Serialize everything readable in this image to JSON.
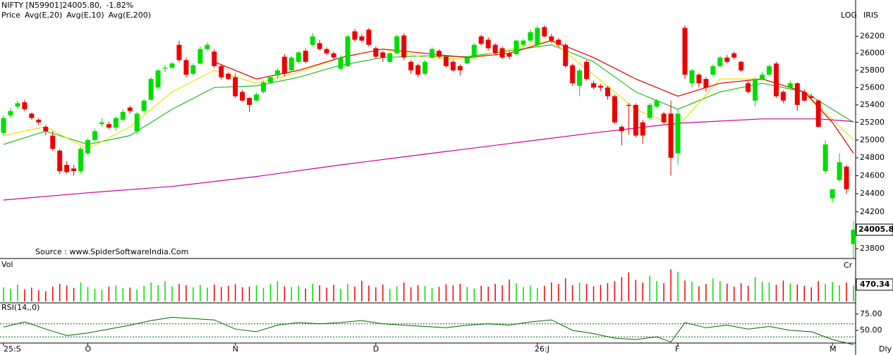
{
  "chart_data": {
    "type": "candlestick",
    "symbol": "NIFTY [N59901]24005.80,",
    "change": "-1.82%",
    "scale_label": "LOG",
    "theme_label": "IRIS",
    "source": "Source : www.SpiderSoftwareIndia.Com",
    "period_label": "Dly",
    "log": true,
    "ylim": [
      23710,
      26550
    ],
    "yticks": [
      23800,
      24000,
      24200,
      24400,
      24600,
      24800,
      25000,
      25200,
      25400,
      25600,
      25800,
      26000,
      26200
    ],
    "categories": [
      "25:S",
      null,
      null,
      null,
      null,
      null,
      null,
      null,
      null,
      null,
      null,
      null,
      "O",
      null,
      null,
      null,
      null,
      null,
      null,
      null,
      null,
      null,
      null,
      null,
      null,
      null,
      null,
      null,
      null,
      null,
      null,
      null,
      null,
      "N",
      null,
      null,
      null,
      null,
      null,
      null,
      null,
      null,
      null,
      null,
      null,
      null,
      null,
      null,
      null,
      null,
      null,
      null,
      null,
      "D",
      null,
      null,
      null,
      null,
      null,
      null,
      null,
      null,
      null,
      null,
      null,
      null,
      null,
      null,
      null,
      null,
      null,
      null,
      null,
      null,
      null,
      null,
      "26:J",
      null,
      null,
      null,
      null,
      null,
      null,
      null,
      null,
      null,
      null,
      null,
      null,
      null,
      null,
      null,
      null,
      null,
      null,
      null,
      "F",
      null,
      null,
      null,
      null,
      null,
      null,
      null,
      null,
      null,
      null,
      null,
      null,
      null,
      null,
      null,
      null,
      null,
      null,
      null,
      null,
      null,
      "M",
      null,
      null,
      null
    ],
    "candles": {
      "name": "Price",
      "up_color": "#00dd00",
      "down_color": "#ee0000",
      "ohlc": [
        [
          25080,
          25280,
          25050,
          25250
        ],
        [
          25280,
          25360,
          25250,
          25330
        ],
        [
          25380,
          25450,
          25350,
          25420
        ],
        [
          25430,
          25460,
          25330,
          25350
        ],
        [
          25300,
          25310,
          25230,
          25250
        ],
        [
          25230,
          25250,
          25170,
          25200
        ],
        [
          25150,
          25170,
          25050,
          25100
        ],
        [
          25050,
          25100,
          24880,
          24900
        ],
        [
          24880,
          24900,
          24620,
          24650
        ],
        [
          24720,
          24760,
          24620,
          24640
        ],
        [
          24680,
          24720,
          24600,
          24650
        ],
        [
          24650,
          24920,
          24620,
          24900
        ],
        [
          24850,
          25020,
          24830,
          25000
        ],
        [
          25000,
          25130,
          24980,
          25100
        ],
        [
          25180,
          25250,
          25150,
          25200
        ],
        [
          25180,
          25210,
          25120,
          25140
        ],
        [
          25140,
          25270,
          25100,
          25250
        ],
        [
          25230,
          25350,
          25200,
          25320
        ],
        [
          25370,
          25390,
          25300,
          25330
        ],
        [
          25100,
          25320,
          25060,
          25300
        ],
        [
          25330,
          25470,
          25300,
          25450
        ],
        [
          25460,
          25720,
          25450,
          25700
        ],
        [
          25600,
          25820,
          25580,
          25800
        ],
        [
          25820,
          25860,
          25780,
          25830
        ],
        [
          25830,
          25900,
          25820,
          25880
        ],
        [
          26100,
          26150,
          25900,
          25920
        ],
        [
          25920,
          25950,
          25720,
          25750
        ],
        [
          25760,
          25880,
          25740,
          25860
        ],
        [
          25880,
          26080,
          25870,
          26050
        ],
        [
          26050,
          26130,
          26030,
          26100
        ],
        [
          26020,
          26050,
          25830,
          25850
        ],
        [
          25850,
          25870,
          25690,
          25720
        ],
        [
          25760,
          25780,
          25690,
          25700
        ],
        [
          25720,
          25760,
          25480,
          25500
        ],
        [
          25550,
          25570,
          25440,
          25450
        ],
        [
          25480,
          25490,
          25320,
          25400
        ],
        [
          25450,
          25540,
          25440,
          25520
        ],
        [
          25550,
          25680,
          25530,
          25660
        ],
        [
          25660,
          25740,
          25640,
          25720
        ],
        [
          25740,
          25830,
          25700,
          25800
        ],
        [
          25960,
          25990,
          25730,
          25760
        ],
        [
          25800,
          25970,
          25780,
          25950
        ],
        [
          25900,
          26030,
          25880,
          26010
        ],
        [
          26030,
          26060,
          25880,
          25900
        ],
        [
          26100,
          26240,
          26080,
          26200
        ],
        [
          26120,
          26160,
          26030,
          26050
        ],
        [
          26050,
          26070,
          25980,
          26000
        ],
        [
          26000,
          26020,
          25930,
          25950
        ],
        [
          25820,
          25980,
          25800,
          25950
        ],
        [
          25850,
          26220,
          25840,
          26200
        ],
        [
          26260,
          26290,
          26140,
          26160
        ],
        [
          26200,
          26230,
          26140,
          26150
        ],
        [
          26280,
          26300,
          26080,
          26100
        ],
        [
          26060,
          26080,
          25940,
          25960
        ],
        [
          26010,
          26030,
          25900,
          25950
        ],
        [
          25900,
          26010,
          25880,
          26000
        ],
        [
          26000,
          26220,
          25990,
          26200
        ],
        [
          26210,
          26240,
          25920,
          25950
        ],
        [
          25900,
          25920,
          25760,
          25800
        ],
        [
          25860,
          25880,
          25720,
          25750
        ],
        [
          25760,
          25920,
          25740,
          25900
        ],
        [
          25950,
          26070,
          25940,
          26050
        ],
        [
          26030,
          26050,
          25940,
          25960
        ],
        [
          25960,
          25980,
          25830,
          25850
        ],
        [
          25900,
          25920,
          25780,
          25800
        ],
        [
          25850,
          25870,
          25740,
          25800
        ],
        [
          25880,
          25960,
          25870,
          25950
        ],
        [
          25950,
          26120,
          25940,
          26100
        ],
        [
          26200,
          26220,
          26090,
          26110
        ],
        [
          26160,
          26190,
          26030,
          26060
        ],
        [
          26100,
          26120,
          25980,
          26000
        ],
        [
          26060,
          26080,
          25930,
          25950
        ],
        [
          26000,
          26020,
          25930,
          25960
        ],
        [
          25990,
          26160,
          25970,
          26150
        ],
        [
          26100,
          26170,
          26080,
          26150
        ],
        [
          26150,
          26280,
          26130,
          26250
        ],
        [
          26100,
          26330,
          26080,
          26300
        ],
        [
          26310,
          26330,
          26190,
          26200
        ],
        [
          26200,
          26230,
          26120,
          26150
        ],
        [
          26160,
          26180,
          26080,
          26100
        ],
        [
          26100,
          26120,
          25830,
          25850
        ],
        [
          25860,
          25880,
          25620,
          25650
        ],
        [
          25620,
          25820,
          25500,
          25800
        ],
        [
          25900,
          25920,
          25680,
          25700
        ],
        [
          25650,
          25680,
          25580,
          25600
        ],
        [
          25620,
          25640,
          25560,
          25600
        ],
        [
          25600,
          25620,
          25460,
          25500
        ],
        [
          25500,
          25520,
          25180,
          25200
        ],
        [
          25150,
          25170,
          24940,
          25100
        ],
        [
          25400,
          25420,
          25060,
          25390
        ],
        [
          25400,
          25420,
          25030,
          25050
        ],
        [
          25200,
          25230,
          24960,
          25050
        ],
        [
          25250,
          25420,
          25230,
          25400
        ],
        [
          25380,
          25470,
          25360,
          25450
        ],
        [
          25300,
          25320,
          25180,
          25200
        ],
        [
          25300,
          25450,
          24600,
          24800
        ],
        [
          24850,
          25350,
          24720,
          25300
        ],
        [
          26300,
          26330,
          25700,
          25750
        ],
        [
          25650,
          25820,
          25600,
          25800
        ],
        [
          25750,
          25770,
          25600,
          25650
        ],
        [
          25700,
          25720,
          25550,
          25600
        ],
        [
          25750,
          25870,
          25730,
          25850
        ],
        [
          25850,
          25970,
          25830,
          25950
        ],
        [
          25950,
          25980,
          25880,
          25900
        ],
        [
          26000,
          26020,
          25930,
          25950
        ],
        [
          25900,
          25910,
          25780,
          25800
        ],
        [
          25650,
          25680,
          25530,
          25550
        ],
        [
          25450,
          25720,
          25380,
          25700
        ],
        [
          25700,
          25780,
          25680,
          25750
        ],
        [
          25750,
          25870,
          25730,
          25850
        ],
        [
          25880,
          25900,
          25480,
          25500
        ],
        [
          25550,
          25570,
          25420,
          25450
        ],
        [
          25600,
          25680,
          25580,
          25650
        ],
        [
          25650,
          25660,
          25330,
          25400
        ],
        [
          25550,
          25580,
          25440,
          25450
        ],
        [
          25500,
          25530,
          25470,
          25480
        ],
        [
          25450,
          25460,
          25140,
          25150
        ],
        [
          24650,
          25000,
          24620,
          24950
        ],
        [
          24350,
          24450,
          24300,
          24450
        ],
        [
          24550,
          24850,
          24530,
          24750
        ],
        [
          24700,
          24720,
          24400,
          24450
        ],
        [
          23850,
          24100,
          23700,
          24005.8
        ]
      ],
      "last_label": "24005.8"
    },
    "series": [
      {
        "name": "Avg(E,20)",
        "color": "#22bb22",
        "x": [
          0,
          6,
          12,
          18,
          24,
          30,
          36,
          42,
          48,
          54,
          60,
          66,
          72,
          78,
          84,
          90,
          96,
          102,
          108,
          114,
          121
        ],
        "values": [
          24950,
          25100,
          24950,
          25050,
          25350,
          25600,
          25620,
          25720,
          25860,
          25950,
          25970,
          25960,
          26030,
          26100,
          25900,
          25550,
          25350,
          25550,
          25650,
          25550,
          25200
        ]
      },
      {
        "name": "Avg(E,10)",
        "color": "#e6e600",
        "x": [
          0,
          6,
          12,
          18,
          24,
          30,
          36,
          42,
          48,
          54,
          60,
          66,
          72,
          78,
          84,
          90,
          96,
          102,
          108,
          114,
          121
        ],
        "values": [
          25050,
          25150,
          24900,
          25150,
          25550,
          25800,
          25650,
          25780,
          25950,
          26050,
          25950,
          25930,
          26050,
          26150,
          25750,
          25350,
          25150,
          25700,
          25700,
          25550,
          25000
        ]
      },
      {
        "name": "Avg(E,200)",
        "color": "#cc0099",
        "x": [
          0,
          12,
          24,
          36,
          48,
          60,
          72,
          84,
          96,
          108,
          116,
          121
        ],
        "values": [
          24330,
          24410,
          24480,
          24590,
          24720,
          24840,
          24960,
          25080,
          25190,
          25240,
          25240,
          25210
        ]
      },
      {
        "color": "#dd0000",
        "x": [
          30,
          36,
          42,
          48,
          54,
          60,
          66,
          72,
          78,
          84,
          90,
          96,
          102,
          108,
          114,
          118,
          121
        ],
        "values": [
          25900,
          25700,
          25800,
          25950,
          26050,
          26000,
          25950,
          26000,
          26150,
          25950,
          25700,
          25500,
          25650,
          25700,
          25550,
          25200,
          24850
        ]
      }
    ],
    "volume": {
      "title": "Vol",
      "unit": "Cr",
      "ylim": [
        0,
        1000
      ],
      "last_label": "470.34",
      "values": [
        420,
        380,
        500,
        360,
        410,
        330,
        300,
        440,
        520,
        470,
        400,
        560,
        430,
        380,
        350,
        440,
        470,
        390,
        410,
        350,
        460,
        560,
        480,
        600,
        450,
        520,
        480,
        420,
        490,
        410,
        500,
        430,
        460,
        510,
        420,
        440,
        480,
        400,
        520,
        600,
        450,
        430,
        470,
        380,
        520,
        480,
        410,
        490,
        380,
        520,
        440,
        610,
        470,
        420,
        500,
        380,
        450,
        560,
        420,
        480,
        460,
        400,
        430,
        510,
        470,
        520,
        430,
        380,
        460,
        440,
        520,
        480,
        650,
        540,
        430,
        470,
        390,
        460,
        560,
        520,
        690,
        480,
        560,
        520,
        450,
        490,
        540,
        600,
        720,
        860,
        640,
        560,
        760,
        600,
        540,
        950,
        880,
        620,
        580,
        450,
        520,
        680,
        600,
        520,
        440,
        540,
        460,
        720,
        580,
        560,
        490,
        620,
        530,
        500,
        460,
        420,
        600,
        520,
        580,
        480,
        560,
        470.34
      ]
    },
    "rsi": {
      "title": "RSI(14,,0)",
      "color": "#006600",
      "ylim": [
        23,
        90
      ],
      "yticks": [
        {
          "value": 75,
          "label": "75.00"
        },
        {
          "value": 50,
          "label": "50.00"
        }
      ],
      "levels": [
        60,
        40
      ],
      "x": [
        0,
        3,
        6,
        9,
        12,
        15,
        18,
        21,
        24,
        27,
        30,
        33,
        36,
        39,
        42,
        45,
        48,
        51,
        54,
        57,
        60,
        63,
        66,
        69,
        72,
        75,
        78,
        81,
        84,
        87,
        90,
        93,
        95,
        97,
        100,
        103,
        106,
        109,
        112,
        115,
        118,
        121
      ],
      "values": [
        55,
        63,
        52,
        42,
        46,
        52,
        58,
        65,
        70,
        68,
        66,
        52,
        48,
        58,
        62,
        60,
        62,
        65,
        60,
        58,
        56,
        54,
        58,
        60,
        58,
        63,
        66,
        50,
        45,
        38,
        36,
        40,
        32,
        62,
        54,
        58,
        52,
        56,
        50,
        48,
        36,
        28
      ]
    }
  }
}
